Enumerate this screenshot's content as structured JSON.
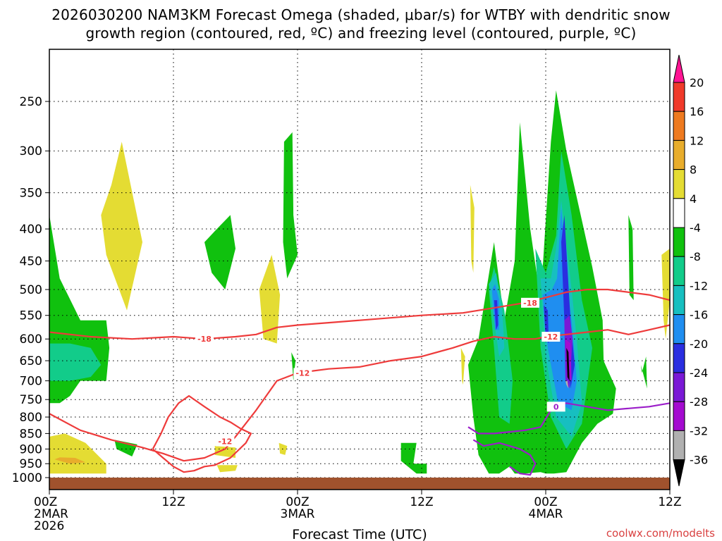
{
  "chart_data": {
    "type": "heatmap",
    "title_line1": "2026030200 NAM3KM Forecast Omega (shaded, μbar/s) for WTBY with dendritic snow",
    "title_line2": "growth region (contoured, red, ºC) and freezing level (contoured, purple, ºC)",
    "xlabel": "Forecast Time (UTC)",
    "credit": "coolwx.com/modelts",
    "x_ticks": [
      {
        "hour": 0,
        "lines": [
          "00Z",
          "2MAR",
          "2026"
        ]
      },
      {
        "hour": 12,
        "lines": [
          "12Z"
        ]
      },
      {
        "hour": 24,
        "lines": [
          "00Z",
          "3MAR"
        ]
      },
      {
        "hour": 36,
        "lines": [
          "12Z"
        ]
      },
      {
        "hour": 48,
        "lines": [
          "00Z",
          "4MAR"
        ]
      },
      {
        "hour": 60,
        "lines": [
          "12Z"
        ]
      }
    ],
    "xlim": [
      0,
      60
    ],
    "y_ticks": [
      250,
      300,
      350,
      400,
      450,
      500,
      550,
      600,
      650,
      700,
      750,
      800,
      850,
      900,
      950,
      1000
    ],
    "y_scale": "pressure (log, inverted)",
    "grid": true,
    "colorbar": {
      "labels": [
        "20",
        "16",
        "12",
        "8",
        "4",
        "-4",
        "-8",
        "-12",
        "-16",
        "-20",
        "-24",
        "-28",
        "-32",
        "-36"
      ],
      "colors": [
        "#ff1493",
        "#f03a2a",
        "#ee7a1f",
        "#e8ad2c",
        "#e4dc33",
        "#ffffff",
        "#10c10e",
        "#12cc8a",
        "#17bfc0",
        "#1f8ef0",
        "#2a2ee0",
        "#7a19d6",
        "#a40bd0",
        "#b0b0b0",
        "#000000"
      ]
    },
    "omega_regions": [
      {
        "name": "dry-slot-left-green",
        "value": -6,
        "color": "#10c10e",
        "hours": [
          0,
          0,
          1,
          2,
          3,
          5.5,
          5.8,
          5.5,
          3,
          1,
          0
        ],
        "pres": [
          320,
          760,
          760,
          740,
          700,
          700,
          620,
          560,
          560,
          480,
          380
        ]
      },
      {
        "name": "left-teal",
        "value": -9,
        "color": "#12cc8a",
        "hours": [
          0,
          0,
          2,
          4,
          5,
          4,
          2
        ],
        "pres": [
          610,
          700,
          700,
          690,
          660,
          620,
          610
        ]
      },
      {
        "name": "upper-yellow-1",
        "value": 5,
        "color": "#e4dc33",
        "hours": [
          5,
          5.5,
          7.5,
          9,
          7,
          6
        ],
        "pres": [
          380,
          440,
          540,
          420,
          290,
          340
        ]
      },
      {
        "name": "upper-yellow-2",
        "value": 5,
        "color": "#e4dc33",
        "hours": [
          20.3,
          20.7,
          22,
          22.3,
          21.5
        ],
        "pres": [
          500,
          600,
          610,
          510,
          440
        ]
      },
      {
        "name": "low-yellow-left",
        "value": 6,
        "color": "#e4dc33",
        "hours": [
          0,
          0,
          5.5,
          5.5,
          3.5,
          1.5
        ],
        "pres": [
          860,
          985,
          985,
          950,
          880,
          850
        ]
      },
      {
        "name": "low-orange-left",
        "value": 9,
        "color": "#e8ad2c",
        "hours": [
          0.5,
          2,
          3.5,
          2.5,
          1
        ],
        "pres": [
          935,
          950,
          945,
          930,
          928
        ]
      },
      {
        "name": "upper-green-2",
        "value": -6,
        "color": "#10c10e",
        "hours": [
          15,
          15.7,
          17,
          18,
          17.5,
          16.2
        ],
        "pres": [
          420,
          470,
          500,
          430,
          380,
          400
        ]
      },
      {
        "name": "upper-green-3",
        "value": -6,
        "color": "#10c10e",
        "hours": [
          22.7,
          22.6,
          23,
          24,
          23.6,
          23.5
        ],
        "pres": [
          290,
          420,
          480,
          440,
          380,
          280
        ]
      },
      {
        "name": "mid-green-dot",
        "value": -5,
        "color": "#10c10e",
        "hours": [
          23.4,
          23.8,
          23.6
        ],
        "pres": [
          630,
          650,
          700
        ]
      },
      {
        "name": "low-green-a",
        "value": -5,
        "color": "#10c10e",
        "hours": [
          6.3,
          8.5,
          8.0,
          6.5
        ],
        "pres": [
          870,
          885,
          925,
          900
        ]
      },
      {
        "name": "low-yellow-b",
        "value": 5,
        "color": "#e4dc33",
        "hours": [
          16,
          18,
          18,
          16
        ],
        "pres": [
          890,
          895,
          930,
          920
        ]
      },
      {
        "name": "low-yellow-c",
        "value": 5,
        "color": "#e4dc33",
        "hours": [
          16.2,
          18.2,
          18,
          16.5
        ],
        "pres": [
          955,
          955,
          975,
          980
        ]
      },
      {
        "name": "low-yellow-d",
        "value": 5,
        "color": "#e4dc33",
        "hours": [
          22.2,
          23,
          22.8,
          22.3
        ],
        "pres": [
          880,
          890,
          920,
          915
        ]
      },
      {
        "name": "low-green-e",
        "value": -5,
        "color": "#10c10e",
        "hours": [
          34,
          35.5,
          35.2,
          36.5,
          36.5,
          35.5,
          34
        ],
        "pres": [
          880,
          880,
          950,
          950,
          985,
          985,
          940
        ]
      },
      {
        "name": "upper-yellow-e",
        "value": 5,
        "color": "#e4dc33",
        "hours": [
          39.8,
          40.2,
          40,
          39.9
        ],
        "pres": [
          620,
          640,
          710,
          700
        ]
      },
      {
        "name": "upper-yellow-f",
        "value": 5,
        "color": "#e4dc33",
        "hours": [
          40.7,
          41.1,
          41.0,
          40.8
        ],
        "pres": [
          340,
          370,
          470,
          450
        ]
      },
      {
        "name": "storm-green",
        "value": -6,
        "color": "#10c10e",
        "hours": [
          40.5,
          41,
          41.5,
          42.5,
          43.5,
          44.5,
          45,
          46,
          47.5,
          48,
          48.8,
          50,
          51.5,
          53,
          54.5,
          54.8,
          53.6,
          53.5,
          52.5,
          50,
          49,
          48.5,
          47.5,
          46.5,
          45.5,
          45,
          44,
          43,
          41.5
        ],
        "pres": [
          660,
          800,
          920,
          985,
          985,
          960,
          985,
          985,
          980,
          985,
          985,
          980,
          880,
          820,
          790,
          720,
          650,
          560,
          460,
          300,
          240,
          290,
          520,
          400,
          270,
          450,
          560,
          420,
          600
        ]
      },
      {
        "name": "storm-teal-a",
        "value": -10,
        "color": "#12cc8a",
        "hours": [
          42.5,
          43,
          43.5,
          44.5,
          44.8,
          44,
          43
        ],
        "pres": [
          500,
          620,
          800,
          820,
          700,
          540,
          460
        ]
      },
      {
        "name": "storm-teal-b",
        "value": -10,
        "color": "#12cc8a",
        "hours": [
          47,
          47.5,
          48.5,
          50,
          51.5,
          52.5,
          51.5,
          50.5,
          49.5,
          49,
          48
        ],
        "pres": [
          430,
          620,
          800,
          900,
          820,
          620,
          520,
          380,
          300,
          410,
          470
        ]
      },
      {
        "name": "storm-cyan-a",
        "value": -14,
        "color": "#17bfc0",
        "hours": [
          42.5,
          43,
          43.5,
          44,
          43.8,
          43.2
        ],
        "pres": [
          490,
          560,
          640,
          620,
          540,
          470
        ]
      },
      {
        "name": "storm-cyan-b",
        "value": -14,
        "color": "#17bfc0",
        "hours": [
          47.5,
          48,
          49,
          50.5,
          51.5,
          51,
          50.5,
          49.5,
          49,
          48.5
        ],
        "pres": [
          480,
          640,
          800,
          860,
          760,
          600,
          500,
          360,
          430,
          480
        ]
      },
      {
        "name": "storm-blue-a",
        "value": -18,
        "color": "#1f8ef0",
        "hours": [
          42.8,
          43.1,
          43.5,
          43.5,
          43.1
        ],
        "pres": [
          500,
          580,
          580,
          520,
          490
        ]
      },
      {
        "name": "storm-blue-b",
        "value": -18,
        "color": "#1f8ef0",
        "hours": [
          47.7,
          48.2,
          49.2,
          50.5,
          51,
          50.5,
          50,
          49.5,
          49.1,
          48.6
        ],
        "pres": [
          510,
          620,
          760,
          780,
          700,
          560,
          480,
          370,
          480,
          500
        ]
      },
      {
        "name": "storm-navy-a",
        "value": -22,
        "color": "#2a2ee0",
        "hours": [
          43.0,
          43.2,
          43.4,
          43.3
        ],
        "pres": [
          520,
          580,
          570,
          520
        ]
      },
      {
        "name": "storm-navy-b",
        "value": -22,
        "color": "#2a2ee0",
        "hours": [
          47.8,
          48.2,
          48.3,
          48.0
        ],
        "pres": [
          530,
          540,
          610,
          600
        ]
      },
      {
        "name": "storm-navy-c",
        "value": -22,
        "color": "#2a2ee0",
        "hours": [
          49.5,
          49.8,
          50.4,
          50.8,
          50.4,
          49.8
        ],
        "pres": [
          420,
          560,
          720,
          660,
          560,
          380
        ]
      },
      {
        "name": "storm-purple",
        "value": -26,
        "color": "#7a19d6",
        "hours": [
          49.8,
          49.9,
          50.3,
          50.6,
          50.3
        ],
        "pres": [
          560,
          700,
          720,
          600,
          550
        ]
      },
      {
        "name": "storm-violet",
        "value": -30,
        "color": "#a40bd0",
        "hours": [
          49.9,
          50.4,
          50.5,
          50.1
        ],
        "pres": [
          600,
          610,
          700,
          690
        ]
      },
      {
        "name": "storm-core-black",
        "value": -37,
        "color": "#000000",
        "hours": [
          50.0,
          50.2,
          50.3,
          50.1
        ],
        "pres": [
          620,
          630,
          700,
          690
        ]
      },
      {
        "name": "storm-core-gray",
        "value": -34,
        "color": "#b0b0b0",
        "hours": [
          49.9,
          50.0,
          50.2,
          50.1
        ],
        "pres": [
          700,
          710,
          720,
          700
        ]
      },
      {
        "name": "far-right-green",
        "value": -6,
        "color": "#10c10e",
        "hours": [
          57.2,
          57.8,
          57.7,
          57.3
        ],
        "pres": [
          660,
          720,
          640,
          680
        ]
      },
      {
        "name": "far-right-yellow",
        "value": 5,
        "color": "#e4dc33",
        "hours": [
          59.2,
          60,
          60,
          59.6,
          59.4
        ],
        "pres": [
          440,
          430,
          520,
          600,
          560
        ]
      },
      {
        "name": "right-green-sliver",
        "value": -5,
        "color": "#10c10e",
        "hours": [
          56,
          56.4,
          56.5,
          56.1
        ],
        "pres": [
          380,
          400,
          520,
          510
        ]
      }
    ],
    "contours": [
      {
        "name": "minus-18-isotherm",
        "label": "-18",
        "color": "#ee3b3b",
        "hours": [
          0,
          4,
          8,
          12,
          15,
          18,
          20,
          22,
          24,
          27,
          30,
          33,
          36,
          40,
          43,
          46,
          48,
          50,
          52,
          54,
          56,
          58,
          60
        ],
        "pres": [
          585,
          595,
          600,
          595,
          600,
          595,
          590,
          575,
          570,
          565,
          560,
          555,
          550,
          545,
          535,
          525,
          515,
          505,
          500,
          500,
          505,
          510,
          520
        ]
      },
      {
        "name": "minus-12-isotherm",
        "label": "-12",
        "color": "#ee3b3b",
        "hours": [
          0,
          3,
          6,
          9,
          11,
          13,
          15,
          17,
          18,
          20,
          22,
          24,
          27,
          30,
          33,
          36,
          39,
          41,
          43,
          45,
          47,
          48,
          50,
          52,
          54,
          56,
          58,
          60
        ],
        "pres": [
          790,
          840,
          870,
          895,
          915,
          940,
          930,
          900,
          860,
          780,
          700,
          680,
          670,
          665,
          650,
          640,
          620,
          605,
          595,
          600,
          600,
          595,
          590,
          585,
          580,
          590,
          580,
          570
        ]
      },
      {
        "name": "minus-12-lower-loop",
        "label": "-12",
        "color": "#ee3b3b",
        "hours": [
          10,
          11,
          12,
          13,
          14,
          15,
          16,
          17.5,
          19,
          19.5,
          18.5,
          17.5,
          16.5,
          15,
          13.5,
          12.5,
          11.5,
          10.8,
          10
        ],
        "pres": [
          900,
          930,
          960,
          980,
          975,
          960,
          955,
          930,
          880,
          850,
          835,
          815,
          800,
          770,
          740,
          760,
          800,
          850,
          900
        ]
      },
      {
        "name": "zero-freezing-level",
        "label": "0",
        "color": "#9b1dc9",
        "hours": [
          40.5,
          41.5,
          43,
          44.5,
          46,
          47.5,
          48.5,
          50,
          52,
          54,
          56,
          58,
          60
        ],
        "pres": [
          830,
          850,
          850,
          845,
          840,
          830,
          780,
          760,
          770,
          780,
          775,
          770,
          760
        ]
      },
      {
        "name": "zero-freezing-lower",
        "label": "",
        "color": "#9b1dc9",
        "hours": [
          41,
          42,
          43.5,
          44.5,
          45.5,
          46.5,
          47,
          46.5,
          45.5,
          44.5
        ],
        "pres": [
          870,
          890,
          880,
          890,
          900,
          920,
          950,
          990,
          985,
          960
        ]
      }
    ],
    "contour_labels": [
      {
        "text": "-18",
        "hour": 15.0,
        "pres": 600,
        "color": "#ee3b3b"
      },
      {
        "text": "-18",
        "hour": 46.5,
        "pres": 525,
        "color": "#ee3b3b"
      },
      {
        "text": "-12",
        "hour": 24.5,
        "pres": 680,
        "color": "#ee3b3b"
      },
      {
        "text": "-12",
        "hour": 48.5,
        "pres": 595,
        "color": "#ee3b3b"
      },
      {
        "text": "-12",
        "hour": 17.0,
        "pres": 875,
        "color": "#ee3b3b"
      },
      {
        "text": "0",
        "hour": 49.0,
        "pres": 770,
        "color": "#9b1dc9"
      }
    ],
    "terrain_color": "#a0522d"
  }
}
